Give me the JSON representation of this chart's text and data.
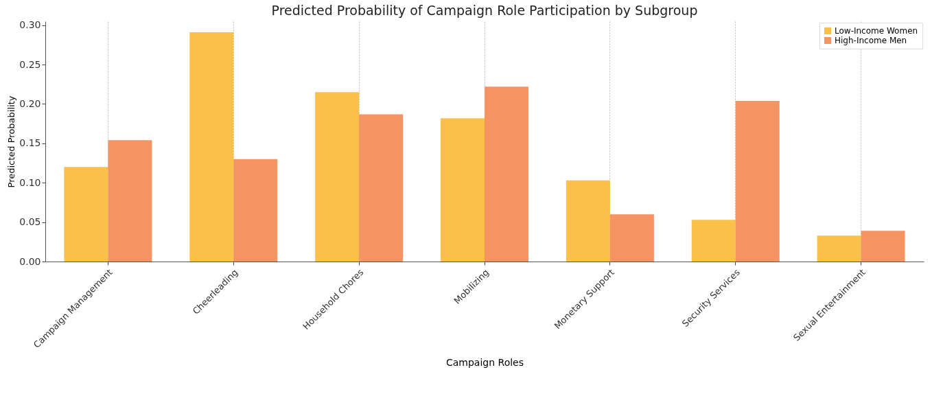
{
  "chart_data": {
    "type": "bar",
    "title": "Predicted Probability of Campaign Role Participation by Subgroup",
    "xlabel": "Campaign Roles",
    "ylabel": "Predicted Probability",
    "categories": [
      "Campaign Management",
      "Cheerleading",
      "Household Chores",
      "Mobilizing",
      "Monetary Support",
      "Security Services",
      "Sexual Entertainment"
    ],
    "series": [
      {
        "name": "Low-Income Women",
        "color": "#fbc04a",
        "values": [
          0.12,
          0.291,
          0.215,
          0.182,
          0.103,
          0.053,
          0.033
        ]
      },
      {
        "name": "High-Income Men",
        "color": "#f39462",
        "values": [
          0.154,
          0.13,
          0.187,
          0.222,
          0.06,
          0.204,
          0.039
        ]
      }
    ],
    "ylim": [
      0,
      0.305
    ],
    "yticks": [
      {
        "value": 0,
        "label": "0.00"
      },
      {
        "value": 0.05,
        "label": "0.05"
      },
      {
        "value": 0.1,
        "label": "0.10"
      },
      {
        "value": 0.15,
        "label": "0.15"
      },
      {
        "value": 0.2,
        "label": "0.20"
      },
      {
        "value": 0.25,
        "label": "0.25"
      },
      {
        "value": 0.3,
        "label": "0.30"
      }
    ],
    "grid": "x",
    "legend": "top right"
  }
}
